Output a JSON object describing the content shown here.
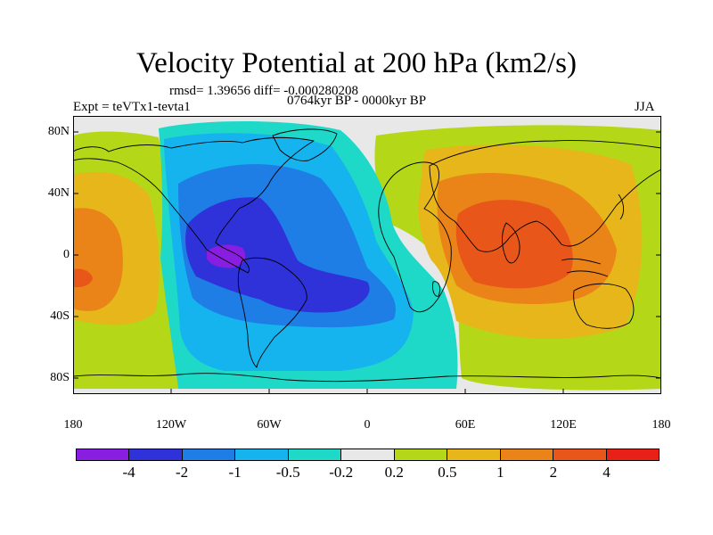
{
  "title": "Velocity Potential at 200 hPa (km2/s)",
  "stats": "rmsd= 1.39656 diff= -0.000280208",
  "experiment": "Expt = teVTx1-tevta1",
  "period": "0764kyr BP - 0000kyr BP",
  "season": "JJA",
  "lat_labels": [
    "80N",
    "40N",
    "0",
    "40S",
    "80S"
  ],
  "lon_labels": [
    "180",
    "120W",
    "60W",
    "0",
    "60E",
    "120E",
    "180"
  ],
  "colorbar": {
    "colors": [
      "#8a1ee0",
      "#2f31d9",
      "#1e7ee6",
      "#16b4ee",
      "#1ed8c8",
      "#e8e8e8",
      "#b4d818",
      "#e6b61a",
      "#ea8418",
      "#e8561a",
      "#e82018"
    ],
    "labels": [
      "-4",
      "-2",
      "-1",
      "-0.5",
      "-0.2",
      "0.2",
      "0.5",
      "1",
      "2",
      "4"
    ]
  },
  "map": {
    "fields": {
      "background": "#e8e8e8",
      "west_light": "#b4d818",
      "west_yellow": "#e6b61a",
      "west_orange": "#ea8418",
      "west_red": "#e8561a",
      "aqua": "#1ed8c8",
      "cyan": "#16b4ee",
      "blue": "#1e7ee6",
      "dark_blue": "#2f31d9",
      "purple": "#8a1ee0",
      "east_light": "#b4d818",
      "east_yellow": "#e6b61a",
      "east_orange": "#ea8418",
      "east_red": "#e8561a"
    }
  }
}
